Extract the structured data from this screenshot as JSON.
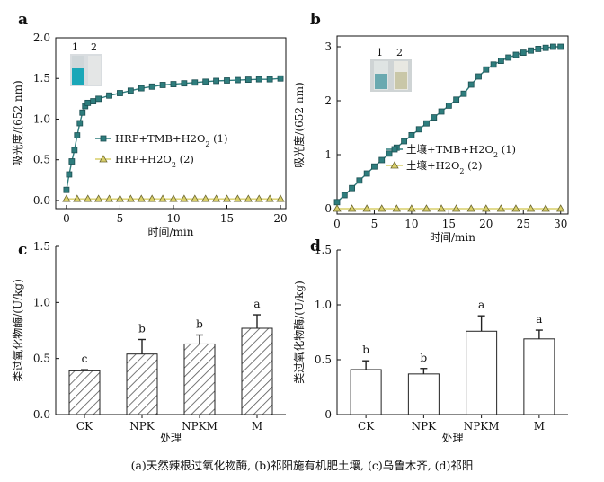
{
  "caption": "(a)天然辣根过氧化物酶, (b)祁阳施有机肥土壤, (c)乌鲁木齐, (d)祁阳",
  "colors": {
    "series1": "#2e7d7d",
    "series2": "#d9cf6a",
    "hatch": "#555555"
  },
  "chart_data": [
    {
      "panel": "a",
      "type": "line",
      "xlabel": "时间/min",
      "ylabel": "吸光度/(652 nm)",
      "xlim": [
        -1,
        20.5
      ],
      "ylim": [
        -0.1,
        2.0
      ],
      "xticks": [
        0,
        5,
        10,
        15,
        20
      ],
      "xtick_labels": [
        "0",
        "5",
        "10",
        "15",
        "20"
      ],
      "yticks": [
        0,
        0.5,
        1.0,
        1.5,
        2.0
      ],
      "ytick_labels": [
        "0.0",
        "0.5",
        "1.0",
        "1.5",
        "2.0"
      ],
      "inset_labels": [
        "1",
        "2"
      ],
      "legend_placement": "center-right",
      "series": [
        {
          "name": "HRP+TMB+H2O2 (1)",
          "marker": "square",
          "x": [
            0,
            0.25,
            0.5,
            0.75,
            1,
            1.25,
            1.5,
            1.75,
            2,
            2.5,
            3,
            4,
            5,
            6,
            7,
            8,
            9,
            10,
            11,
            12,
            13,
            14,
            15,
            16,
            17,
            18,
            19,
            20
          ],
          "y": [
            0.13,
            0.32,
            0.48,
            0.62,
            0.8,
            0.95,
            1.08,
            1.16,
            1.2,
            1.22,
            1.25,
            1.29,
            1.32,
            1.35,
            1.38,
            1.4,
            1.42,
            1.43,
            1.44,
            1.45,
            1.46,
            1.47,
            1.475,
            1.48,
            1.485,
            1.49,
            1.49,
            1.5
          ]
        },
        {
          "name": "HRP+H2O2 (2)",
          "marker": "triangle",
          "x": [
            0,
            1,
            2,
            3,
            4,
            5,
            6,
            7,
            8,
            9,
            10,
            11,
            12,
            13,
            14,
            15,
            16,
            17,
            18,
            19,
            20
          ],
          "y": [
            0.02,
            0.02,
            0.02,
            0.02,
            0.02,
            0.02,
            0.02,
            0.02,
            0.02,
            0.02,
            0.02,
            0.02,
            0.02,
            0.02,
            0.02,
            0.02,
            0.02,
            0.02,
            0.02,
            0.02,
            0.02
          ]
        }
      ]
    },
    {
      "panel": "b",
      "type": "line",
      "xlabel": "时间/min",
      "ylabel": "吸光度/(652 nm)",
      "xlim": [
        0,
        31
      ],
      "ylim": [
        -0.1,
        3.2
      ],
      "xticks": [
        0,
        5,
        10,
        15,
        20,
        25,
        30
      ],
      "xtick_labels": [
        "0",
        "5",
        "10",
        "15",
        "20",
        "25",
        "30"
      ],
      "yticks": [
        0,
        1,
        2,
        3
      ],
      "ytick_labels": [
        "0",
        "1",
        "2",
        "3"
      ],
      "inset_labels": [
        "1",
        "2"
      ],
      "legend_placement": "center-right",
      "series": [
        {
          "name": "土壤+TMB+H2O2 (1)",
          "marker": "square",
          "x": [
            0,
            1,
            2,
            3,
            4,
            5,
            6,
            7,
            8,
            9,
            10,
            11,
            12,
            13,
            14,
            15,
            16,
            17,
            18,
            19,
            20,
            21,
            22,
            23,
            24,
            25,
            26,
            27,
            28,
            29,
            30
          ],
          "y": [
            0.12,
            0.25,
            0.38,
            0.52,
            0.65,
            0.78,
            0.9,
            1.02,
            1.13,
            1.25,
            1.36,
            1.47,
            1.58,
            1.69,
            1.8,
            1.91,
            2.02,
            2.13,
            2.3,
            2.45,
            2.58,
            2.67,
            2.74,
            2.8,
            2.85,
            2.89,
            2.93,
            2.96,
            2.98,
            3.0,
            3.0
          ]
        },
        {
          "name": "土壤+H2O2 (2)",
          "marker": "triangle",
          "x": [
            0,
            2,
            4,
            6,
            8,
            10,
            12,
            14,
            16,
            18,
            20,
            22,
            24,
            26,
            28,
            30
          ],
          "y": [
            0.0,
            0.0,
            0.0,
            0.0,
            0.0,
            0.0,
            0.0,
            0.0,
            0.0,
            0.0,
            0.0,
            0.0,
            0.0,
            0.0,
            0.0,
            0.0
          ]
        }
      ]
    },
    {
      "panel": "c",
      "type": "bar",
      "style": "hatched",
      "xlabel": "处理",
      "ylabel": "类过氧化物酶/(U/kg)",
      "ylim": [
        0,
        1.5
      ],
      "yticks": [
        0,
        0.5,
        1.0,
        1.5
      ],
      "ytick_labels": [
        "0.0",
        "0.5",
        "1.0",
        "1.5"
      ],
      "categories": [
        "CK",
        "NPK",
        "NPKM",
        "M"
      ],
      "values": [
        0.39,
        0.54,
        0.63,
        0.77
      ],
      "errors": [
        0.01,
        0.13,
        0.08,
        0.12
      ],
      "labels": [
        "c",
        "b",
        "b",
        "a"
      ]
    },
    {
      "panel": "d",
      "type": "bar",
      "style": "open",
      "xlabel": "处理",
      "ylabel": "类过氧化物酶/(U/kg)",
      "ylim": [
        0,
        1.5
      ],
      "yticks": [
        0,
        0.5,
        1.0,
        1.5
      ],
      "ytick_labels": [
        "0",
        "0.5",
        "1.0",
        "1.5"
      ],
      "categories": [
        "CK",
        "NPK",
        "NPKM",
        "M"
      ],
      "values": [
        0.41,
        0.37,
        0.76,
        0.69
      ],
      "errors": [
        0.08,
        0.05,
        0.14,
        0.08
      ],
      "labels": [
        "b",
        "b",
        "a",
        "a"
      ]
    }
  ]
}
